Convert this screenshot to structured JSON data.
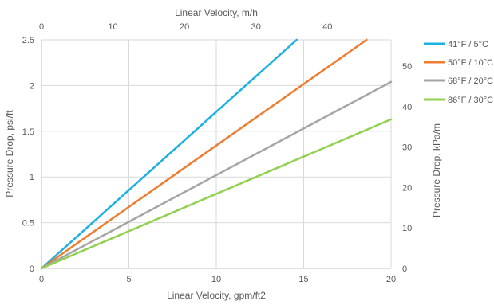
{
  "chart_data": {
    "type": "line",
    "title": "",
    "xlabel": "Linear Velocity, gpm/ft2",
    "ylabel": "Pressure Drop, psi/ft",
    "x2label": "Linear Velocity, m/h",
    "y2label": "Pressure Drop, kPa/m",
    "xlim": [
      0,
      20
    ],
    "ylim": [
      0,
      2.5
    ],
    "x2lim": [
      0,
      48.9
    ],
    "y2lim": [
      0,
      56.55
    ],
    "x_ticks": [
      "0",
      "5",
      "10",
      "15",
      "20"
    ],
    "y_ticks": [
      "0",
      "0.5",
      "1",
      "1.5",
      "2",
      "2.5"
    ],
    "x2_ticks": [
      "0",
      "10",
      "20",
      "30",
      "40"
    ],
    "y2_ticks": [
      "0",
      "10",
      "20",
      "30",
      "40",
      "50"
    ],
    "grid": true,
    "legend_position": "right",
    "series": [
      {
        "name": "41°F / 5°C",
        "color": "#1cb0e4",
        "x": [
          0,
          14.6
        ],
        "y": [
          0,
          2.5
        ]
      },
      {
        "name": "50°F / 10°C",
        "color": "#ed7d31",
        "x": [
          0,
          18.6
        ],
        "y": [
          0,
          2.5
        ]
      },
      {
        "name": "68°F / 20°C",
        "color": "#a5a5a5",
        "x": [
          0,
          20
        ],
        "y": [
          0,
          2.04
        ]
      },
      {
        "name": "86°F / 30°C",
        "color": "#92d050",
        "x": [
          0,
          20
        ],
        "y": [
          0,
          1.63
        ]
      }
    ]
  }
}
